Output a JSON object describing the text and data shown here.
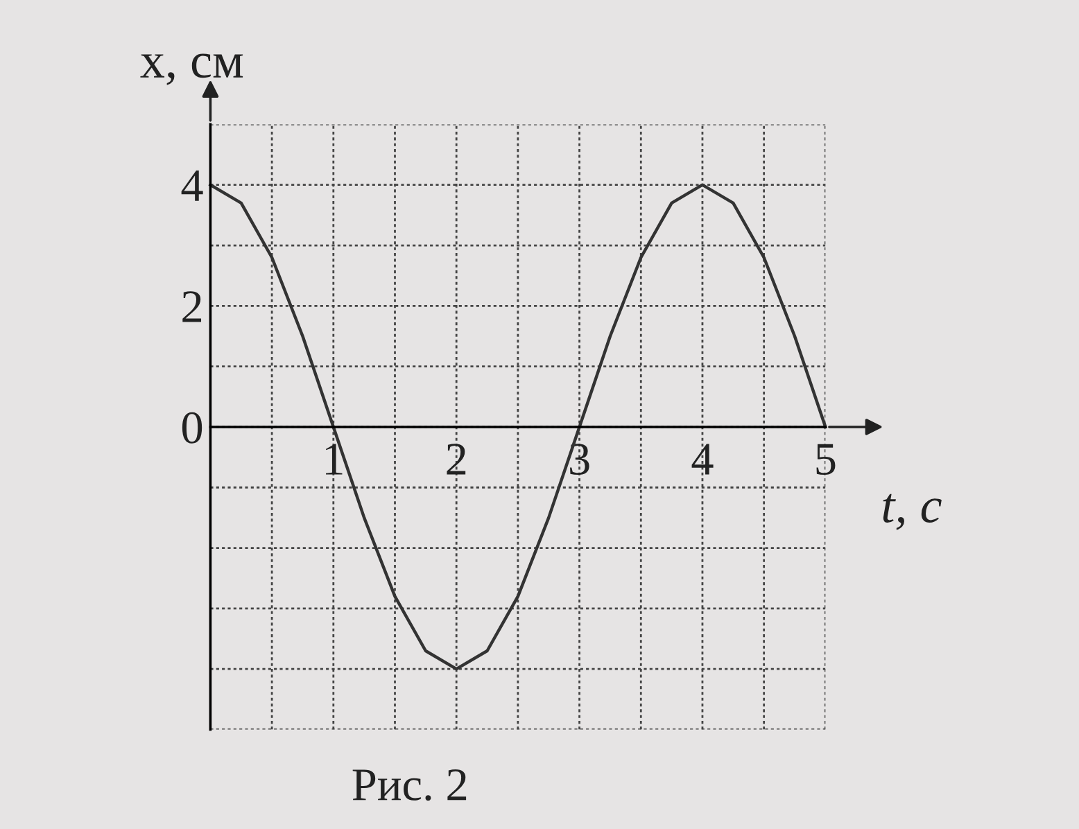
{
  "chart_data": {
    "type": "line",
    "xlabel": "t, с",
    "ylabel": "x, см",
    "annotations": [
      "Рис. 2"
    ],
    "x": [
      0,
      0.25,
      0.5,
      0.75,
      1,
      1.25,
      1.5,
      1.75,
      2,
      2.25,
      2.5,
      2.75,
      3,
      3.25,
      3.5,
      3.75,
      4,
      4.25,
      4.5,
      4.75,
      5
    ],
    "series": [
      {
        "color": "#333333",
        "values": [
          4,
          3.7,
          2.8,
          1.5,
          0,
          -1.5,
          -2.8,
          -3.7,
          -4,
          -3.7,
          -2.8,
          -1.5,
          0,
          1.5,
          2.8,
          3.7,
          4,
          3.7,
          2.8,
          1.5,
          0
        ]
      }
    ],
    "xlim": [
      0,
      5
    ],
    "ylim": [
      -5,
      5
    ],
    "xticks": [
      {
        "value": 0,
        "label": null
      },
      {
        "value": 0.5,
        "label": null
      },
      1,
      {
        "value": 1.5,
        "label": null
      },
      2,
      {
        "value": 2.5,
        "label": null
      },
      3,
      {
        "value": 3.5,
        "label": null
      },
      4,
      {
        "value": 4.5,
        "label": null
      },
      5
    ],
    "yticks": [
      {
        "value": -5,
        "label": null
      },
      {
        "value": -4,
        "label": null
      },
      {
        "value": -3,
        "label": null
      },
      {
        "value": -2,
        "label": null
      },
      {
        "value": -1,
        "label": null
      },
      0,
      {
        "value": 1,
        "label": null
      },
      2,
      {
        "value": 3,
        "label": null
      },
      4,
      {
        "value": 5,
        "label": null
      }
    ],
    "grid": true,
    "marker": "none",
    "line_style": "solid",
    "legend": false
  }
}
